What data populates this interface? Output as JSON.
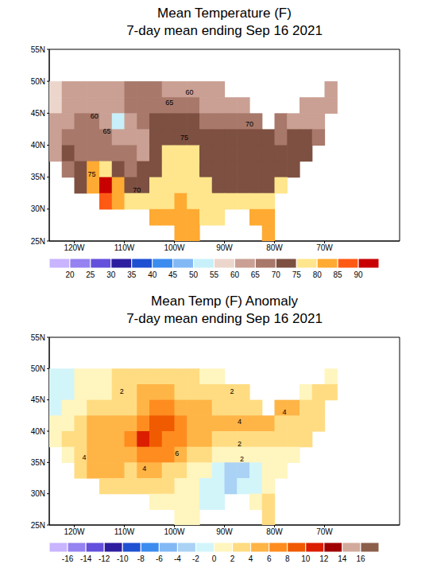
{
  "chart_data": [
    {
      "type": "heatmap",
      "title": "Mean Temperature (F)",
      "subtitle": "7-day mean ending Sep 16 2021",
      "xlim": [
        -125,
        -55
      ],
      "ylim": [
        25,
        55
      ],
      "xticks": [
        {
          "value": -120,
          "label": "120W"
        },
        {
          "value": -110,
          "label": "110W"
        },
        {
          "value": -100,
          "label": "100W"
        },
        {
          "value": -90,
          "label": "90W"
        },
        {
          "value": -80,
          "label": "80W"
        },
        {
          "value": -70,
          "label": "70W"
        }
      ],
      "yticks": [
        {
          "value": 25,
          "label": "25N"
        },
        {
          "value": 30,
          "label": "30N"
        },
        {
          "value": 35,
          "label": "35N"
        },
        {
          "value": 40,
          "label": "40N"
        },
        {
          "value": 45,
          "label": "45N"
        },
        {
          "value": 50,
          "label": "50N"
        },
        {
          "value": 55,
          "label": "55N"
        }
      ],
      "grid": false,
      "lons": [
        -123.75,
        -121.25,
        -118.75,
        -116.25,
        -113.75,
        -111.25,
        -108.75,
        -106.25,
        -103.75,
        -101.25,
        -98.75,
        -96.25,
        -93.75,
        -91.25,
        -88.75,
        -86.25,
        -83.75,
        -81.25,
        -78.75,
        -76.25,
        -73.75,
        -71.25,
        -68.75
      ],
      "lats": [
        48.75,
        46.25,
        43.75,
        41.25,
        38.75,
        36.25,
        33.75,
        31.25,
        28.75,
        26.25
      ],
      "cells": [
        [
          58,
          60,
          61,
          60,
          62,
          63,
          65,
          66,
          65,
          64,
          63,
          62,
          61,
          61,
          null,
          null,
          null,
          null,
          null,
          null,
          null,
          null,
          60
        ],
        [
          59,
          62,
          64,
          62,
          60,
          64,
          66,
          68,
          69,
          68,
          67,
          66,
          64,
          63,
          62,
          62,
          null,
          null,
          null,
          null,
          61,
          61,
          60
        ],
        [
          60,
          62,
          66,
          65,
          62,
          54,
          64,
          68,
          70,
          72,
          71,
          70,
          69,
          68,
          68,
          67,
          66,
          null,
          65,
          63,
          63,
          64,
          null
        ],
        [
          62,
          66,
          68,
          67,
          66,
          64,
          62,
          62,
          70,
          74,
          74,
          73,
          72,
          72,
          72,
          71,
          71,
          70,
          68,
          70,
          71,
          68,
          null
        ],
        [
          64,
          70,
          68,
          66,
          68,
          66,
          66,
          64,
          72,
          76,
          77,
          76,
          74,
          74,
          74,
          72,
          72,
          70,
          70,
          72,
          72,
          null,
          null
        ],
        [
          null,
          66,
          74,
          80,
          76,
          72,
          68,
          70,
          74,
          76,
          77,
          76,
          74,
          74,
          73,
          72,
          71,
          72,
          73,
          74,
          null,
          null,
          null
        ],
        [
          null,
          null,
          74,
          84,
          91,
          80,
          72,
          73,
          76,
          78,
          78,
          78,
          76,
          74,
          73,
          73,
          74,
          74,
          76,
          null,
          null,
          null,
          null
        ],
        [
          null,
          null,
          null,
          null,
          88,
          80,
          76,
          78,
          78,
          79,
          80,
          79,
          77,
          76,
          76,
          76,
          76,
          77,
          null,
          null,
          null,
          null,
          null
        ],
        [
          null,
          null,
          null,
          null,
          null,
          null,
          null,
          null,
          80,
          82,
          83,
          81,
          79,
          79,
          null,
          null,
          80,
          80,
          null,
          null,
          null,
          null,
          null
        ],
        [
          null,
          null,
          null,
          null,
          null,
          null,
          null,
          null,
          null,
          null,
          84,
          83,
          null,
          null,
          null,
          null,
          null,
          82,
          null,
          null,
          null,
          null,
          null
        ]
      ],
      "colorbar": {
        "ticks": [
          20,
          25,
          30,
          35,
          40,
          45,
          50,
          55,
          60,
          65,
          70,
          75,
          80,
          85,
          90
        ],
        "colors": [
          "#c8b4ff",
          "#9682f0",
          "#6450dc",
          "#2d1ea0",
          "#1e50d2",
          "#3c8cf0",
          "#82b9f5",
          "#c8f0fa",
          "#ecd6cc",
          "#caa094",
          "#a8786a",
          "#7d5041",
          "#ffe68c",
          "#ffaa32",
          "#ff5a14",
          "#c80000"
        ]
      },
      "annotations": [
        {
          "text": "60",
          "x": -97,
          "y": 48.3
        },
        {
          "text": "65",
          "x": -101,
          "y": 46.6
        },
        {
          "text": "60",
          "x": -116,
          "y": 44.5
        },
        {
          "text": "65",
          "x": -113.5,
          "y": 42.2
        },
        {
          "text": "70",
          "x": -85,
          "y": 43.3
        },
        {
          "text": "75",
          "x": -98,
          "y": 41.2
        },
        {
          "text": "75",
          "x": -116.5,
          "y": 35.5
        },
        {
          "text": "70",
          "x": -107.5,
          "y": 33
        }
      ]
    },
    {
      "type": "heatmap",
      "title": "Mean Temp (F) Anomaly",
      "subtitle": "7-day mean ending Sep 16 2021",
      "xlim": [
        -125,
        -55
      ],
      "ylim": [
        25,
        55
      ],
      "xticks": [
        {
          "value": -120,
          "label": "120W"
        },
        {
          "value": -110,
          "label": "110W"
        },
        {
          "value": -100,
          "label": "100W"
        },
        {
          "value": -90,
          "label": "90W"
        },
        {
          "value": -80,
          "label": "80W"
        },
        {
          "value": -70,
          "label": "70W"
        }
      ],
      "yticks": [
        {
          "value": 25,
          "label": "25N"
        },
        {
          "value": 30,
          "label": "30N"
        },
        {
          "value": 35,
          "label": "35N"
        },
        {
          "value": 40,
          "label": "40N"
        },
        {
          "value": 45,
          "label": "45N"
        },
        {
          "value": 50,
          "label": "50N"
        },
        {
          "value": 55,
          "label": "55N"
        }
      ],
      "grid": false,
      "lons": [
        -123.75,
        -121.25,
        -118.75,
        -116.25,
        -113.75,
        -111.25,
        -108.75,
        -106.25,
        -103.75,
        -101.25,
        -98.75,
        -96.25,
        -93.75,
        -91.25,
        -88.75,
        -86.25,
        -83.75,
        -81.25,
        -78.75,
        -76.25,
        -73.75,
        -71.25,
        -68.75
      ],
      "lats": [
        48.75,
        46.25,
        43.75,
        41.25,
        38.75,
        36.25,
        33.75,
        31.25,
        28.75,
        26.25
      ],
      "cells": [
        [
          -1,
          -1,
          0,
          0,
          1,
          2,
          3,
          3,
          3,
          2,
          2,
          2,
          1,
          1,
          null,
          null,
          null,
          null,
          null,
          null,
          null,
          null,
          1
        ],
        [
          -2,
          -1,
          0,
          0,
          0,
          2,
          3,
          4,
          4,
          4,
          3,
          3,
          2,
          2,
          2,
          2,
          null,
          null,
          null,
          null,
          1,
          2,
          2
        ],
        [
          -1,
          0,
          1,
          2,
          2,
          2,
          3,
          5,
          6,
          6,
          5,
          4,
          4,
          3,
          3,
          3,
          3,
          null,
          4,
          4,
          3,
          3,
          null
        ],
        [
          0,
          1,
          3,
          4,
          4,
          4,
          5,
          7,
          9,
          8,
          6,
          5,
          4,
          4,
          4,
          4,
          4,
          4,
          3,
          3,
          3,
          3,
          null
        ],
        [
          1,
          2,
          3,
          4,
          4,
          5,
          7,
          10,
          9,
          7,
          6,
          5,
          4,
          3,
          3,
          2,
          2,
          2,
          2,
          2,
          2,
          null,
          null
        ],
        [
          null,
          1,
          2,
          5,
          5,
          4,
          5,
          6,
          7,
          6,
          5,
          3,
          2,
          1,
          0,
          0,
          0,
          1,
          1,
          1,
          null,
          null,
          null
        ],
        [
          null,
          null,
          2,
          4,
          5,
          4,
          3,
          4,
          4,
          3,
          2,
          1,
          0,
          -2,
          -3,
          -3,
          -1,
          0,
          1,
          null,
          null,
          null,
          null
        ],
        [
          null,
          null,
          null,
          null,
          3,
          2,
          2,
          2,
          2,
          2,
          1,
          0,
          -1,
          -2,
          -3,
          -2,
          -1,
          0,
          null,
          null,
          null,
          null,
          null
        ],
        [
          null,
          null,
          null,
          null,
          null,
          null,
          null,
          null,
          1,
          1,
          1,
          0,
          -1,
          -1,
          null,
          null,
          1,
          2,
          null,
          null,
          null,
          null,
          null
        ],
        [
          null,
          null,
          null,
          null,
          null,
          null,
          null,
          null,
          null,
          null,
          1,
          0,
          null,
          null,
          null,
          null,
          null,
          2,
          null,
          null,
          null,
          null,
          null
        ]
      ],
      "colorbar": {
        "ticks": [
          -16,
          -14,
          -12,
          -10,
          -8,
          -6,
          -4,
          -2,
          0,
          2,
          4,
          6,
          8,
          10,
          12,
          14,
          16
        ],
        "colors": [
          "#c8b4ff",
          "#9682f0",
          "#6450dc",
          "#2d1ea0",
          "#1e50d2",
          "#3c8cf0",
          "#82b9f5",
          "#aad2f5",
          "#d2f5fa",
          "#fff5be",
          "#ffdc82",
          "#ffb446",
          "#ff8c1e",
          "#f05a00",
          "#dc1e00",
          "#a00000",
          "#d2aa9b",
          "#8c5f4b"
        ]
      },
      "annotations": [
        {
          "text": "2",
          "x": -110.5,
          "y": 46.3
        },
        {
          "text": "2",
          "x": -88.5,
          "y": 46.3
        },
        {
          "text": "4",
          "x": -78,
          "y": 43
        },
        {
          "text": "4",
          "x": -87,
          "y": 41.5
        },
        {
          "text": "6",
          "x": -99.5,
          "y": 36.5
        },
        {
          "text": "2",
          "x": -87,
          "y": 38
        },
        {
          "text": "4",
          "x": -106,
          "y": 34
        },
        {
          "text": "2",
          "x": -86.5,
          "y": 35.5
        },
        {
          "text": "4",
          "x": -118,
          "y": 35.8
        }
      ]
    }
  ]
}
